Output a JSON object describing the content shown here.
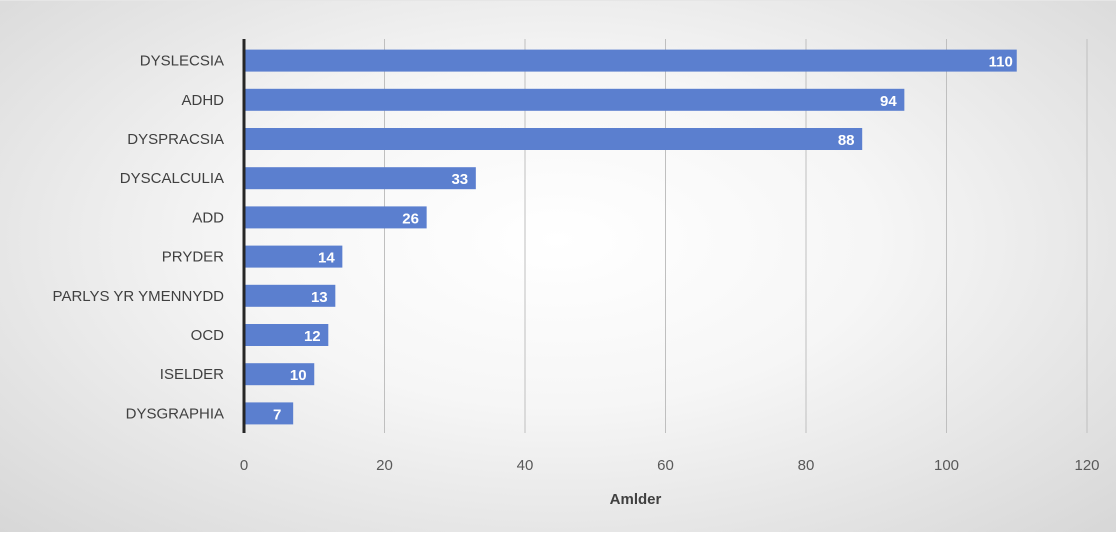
{
  "chart_data": {
    "type": "bar",
    "orientation": "horizontal",
    "categories": [
      "DYSLECSIA",
      "ADHD",
      "DYSPRACSIA",
      "DYSCALCULIA",
      "ADD",
      "PRYDER",
      "PARLYS YR YMENNYDD",
      "OCD",
      "ISELDER",
      "DYSGRAPHIA"
    ],
    "values": [
      110,
      94,
      88,
      33,
      26,
      14,
      13,
      12,
      10,
      7
    ],
    "xlabel": "Amlder",
    "xlim": [
      0,
      120
    ],
    "xticks": [
      0,
      20,
      40,
      60,
      80,
      100,
      120
    ],
    "grid": "vertical",
    "data_labels": true,
    "bar_color": "#5b7fcf"
  }
}
